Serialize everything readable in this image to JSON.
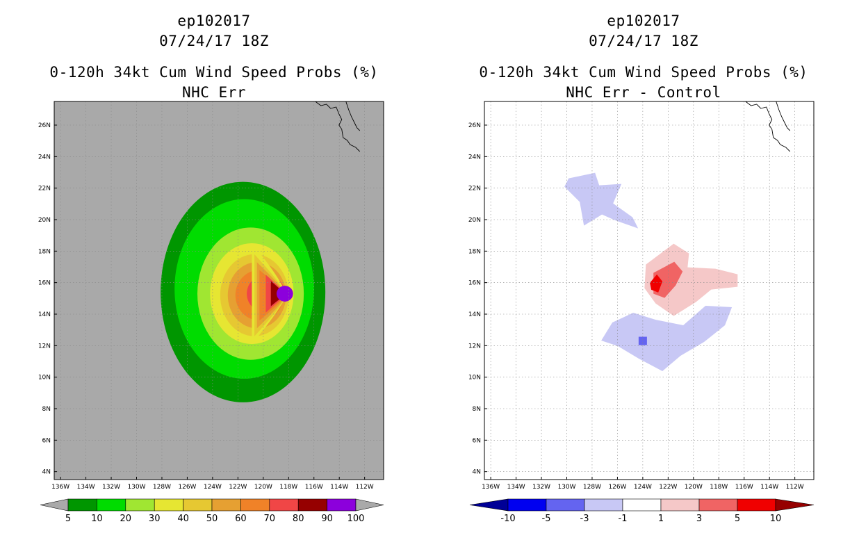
{
  "chart_data": [
    {
      "type": "heatmap",
      "panel": "left",
      "title": "ep102017",
      "datetime": "07/24/17 18Z",
      "subtitle": "0-120h 34kt Cum Wind Speed Probs (%)",
      "product": "NHC Err",
      "xlim": [
        -136.5,
        -110.5
      ],
      "ylim": [
        3.5,
        27.5
      ],
      "x_ticks": [
        "136W",
        "134W",
        "132W",
        "130W",
        "128W",
        "126W",
        "124W",
        "122W",
        "120W",
        "118W",
        "116W",
        "114W",
        "112W"
      ],
      "y_ticks": [
        "4N",
        "6N",
        "8N",
        "10N",
        "12N",
        "14N",
        "16N",
        "18N",
        "20N",
        "22N",
        "24N",
        "26N"
      ],
      "background_color": "#a9a9a9",
      "grid": true,
      "colorbar": {
        "levels": [
          "5",
          "10",
          "20",
          "30",
          "40",
          "50",
          "60",
          "70",
          "80",
          "90",
          "100"
        ],
        "colors": [
          "#a9a9a9",
          "#009600",
          "#00dc00",
          "#a0e632",
          "#e6e632",
          "#e6c832",
          "#e6a032",
          "#f08228",
          "#f04646",
          "#960000",
          "#8c00dc",
          "#a9a9a9"
        ]
      },
      "center_lon": -118.6,
      "center_lat": 15.2,
      "contours": [
        {
          "level": 5,
          "color": "#009600",
          "center": [
            -121.6,
            15.4
          ],
          "radius": [
            6.5,
            7.0
          ]
        },
        {
          "level": 10,
          "color": "#00dc00",
          "center": [
            -121.5,
            15.6
          ],
          "radius": [
            5.5,
            5.7
          ]
        },
        {
          "level": 20,
          "color": "#a0e632",
          "center": [
            -121.0,
            15.3
          ],
          "radius": [
            4.2,
            4.2
          ]
        },
        {
          "level": 30,
          "color": "#e6e632",
          "center": [
            -120.9,
            15.3
          ],
          "radius": [
            3.3,
            3.2
          ]
        },
        {
          "level": 40,
          "color": "#e6c832",
          "center": [
            -120.7,
            15.2
          ],
          "radius": [
            2.7,
            2.6
          ]
        },
        {
          "level": 50,
          "color": "#e6a032",
          "center": [
            -120.5,
            15.2
          ],
          "radius": [
            2.3,
            2.1
          ]
        },
        {
          "level": 60,
          "color": "#f08228",
          "center": [
            -120.3,
            15.2
          ],
          "radius": [
            1.9,
            1.6
          ]
        },
        {
          "level": 70,
          "color": "#f04646",
          "center": [
            -119.8,
            15.3
          ],
          "radius": [
            1.5,
            1.2
          ]
        },
        {
          "level": 80,
          "color": "#960000",
          "center": [
            -119.4,
            15.3
          ],
          "radius": [
            1.1,
            0.8
          ]
        },
        {
          "level": 90,
          "color": "#8c00dc",
          "center": [
            -118.3,
            15.3
          ],
          "radius": [
            0.65,
            0.5
          ]
        }
      ]
    },
    {
      "type": "heatmap",
      "panel": "right",
      "title": "ep102017",
      "datetime": "07/24/17 18Z",
      "subtitle": "0-120h 34kt Cum Wind Speed Probs (%)",
      "product": "NHC Err - Control",
      "xlim": [
        -136.5,
        -110.5
      ],
      "ylim": [
        3.5,
        27.5
      ],
      "x_ticks": [
        "136W",
        "134W",
        "132W",
        "130W",
        "128W",
        "126W",
        "124W",
        "122W",
        "120W",
        "118W",
        "116W",
        "114W",
        "112W"
      ],
      "y_ticks": [
        "4N",
        "6N",
        "8N",
        "10N",
        "12N",
        "14N",
        "16N",
        "18N",
        "20N",
        "22N",
        "24N",
        "26N"
      ],
      "background_color": "#ffffff",
      "grid": true,
      "colorbar": {
        "levels": [
          "-10",
          "-5",
          "-3",
          "-1",
          "1",
          "3",
          "5",
          "10"
        ],
        "colors": [
          "#000096",
          "#0000f0",
          "#6464f0",
          "#c8c8f5",
          "#ffffff",
          "#f5c8c8",
          "#f06464",
          "#f00000",
          "#960000"
        ]
      },
      "areas": [
        {
          "value": "-1 to -3",
          "color": "#c8c8f5",
          "region": "northwest lobe",
          "center": [
            -127.0,
            20.5
          ]
        },
        {
          "value": "-1 to -3",
          "color": "#c8c8f5",
          "region": "south band",
          "center": [
            -123.0,
            12.5
          ]
        },
        {
          "value": "-3 to -5",
          "color": "#6464f0",
          "region": "small spot",
          "center": [
            -124.0,
            12.3
          ]
        },
        {
          "value": "1 to 3",
          "color": "#f5c8c8",
          "region": "central",
          "center": [
            -122.0,
            16.0
          ]
        },
        {
          "value": "3 to 5",
          "color": "#f06464",
          "region": "central core",
          "center": [
            -122.5,
            16.0
          ]
        },
        {
          "value": "5 to 10",
          "color": "#f00000",
          "region": "peak",
          "center": [
            -123.0,
            15.9
          ]
        }
      ]
    }
  ]
}
